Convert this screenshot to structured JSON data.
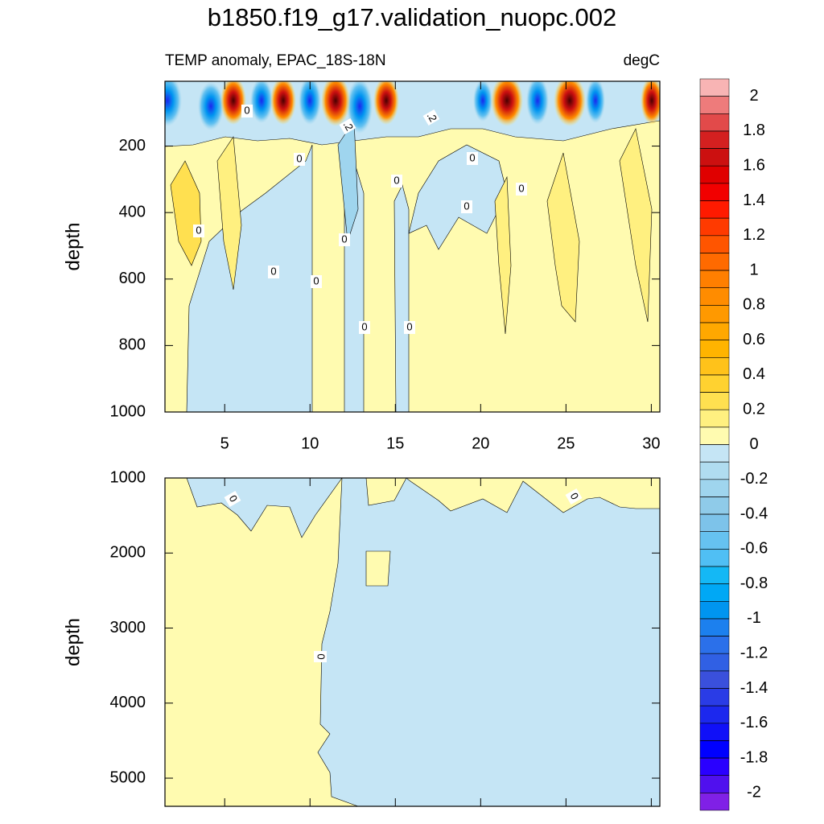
{
  "chart_data": [
    {
      "type": "contour",
      "title": "b1850.f19_g17.validation_nuopc.002",
      "subtitle_left": "TEMP anomaly, EPAC_18S-18N",
      "subtitle_right": "degC",
      "ylabel": "depth",
      "xlim": [
        1.5,
        30.5
      ],
      "xticks": [
        5,
        10,
        15,
        20,
        25,
        30
      ],
      "ylim": [
        5,
        1000
      ],
      "y_reversed": true,
      "yticks": [
        200,
        400,
        600,
        800,
        1000
      ],
      "contour_labels": [
        "0",
        "0",
        "0",
        "0",
        "0",
        "0",
        "0",
        "0",
        "0",
        "0",
        "0",
        "0",
        ".2",
        ".2"
      ],
      "colorbar": {
        "levels": [
          2,
          1.9,
          1.8,
          1.7,
          1.6,
          1.5,
          1.4,
          1.3,
          1.2,
          1.1,
          1,
          0.9,
          0.8,
          0.7,
          0.6,
          0.5,
          0.4,
          0.3,
          0.2,
          0.1,
          0,
          -0.1,
          -0.2,
          -0.3,
          -0.4,
          -0.5,
          -0.6,
          -0.7,
          -0.8,
          -0.9,
          -1,
          -1.1,
          -1.2,
          -1.3,
          -1.4,
          -1.5,
          -1.6,
          -1.7,
          -1.8,
          -1.9,
          -2
        ],
        "colors": [
          "#f8b4b4",
          "#ee7b7b",
          "#e24a4a",
          "#d42020",
          "#cc1010",
          "#e00000",
          "#f20000",
          "#ff1a00",
          "#ff3a00",
          "#ff5500",
          "#ff6a00",
          "#ff7f00",
          "#ff8c00",
          "#ff9900",
          "#ffa800",
          "#ffb400",
          "#ffc21a",
          "#ffd230",
          "#ffe050",
          "#fff080",
          "#fffbb0",
          "#c5e5f5",
          "#b0dcf0",
          "#9fd5ee",
          "#8fcbe9",
          "#7dc3ea",
          "#66c2f0",
          "#50bff4",
          "#14b8f5",
          "#00a8f5",
          "#0095f0",
          "#1c80ee",
          "#2b70ea",
          "#3060e4",
          "#3a50dc",
          "#2a3ce6",
          "#1c28ee",
          "#1010f8",
          "#0000ff",
          "#2a00ff",
          "#5010ee",
          "#8020e6"
        ],
        "ticks": [
          2,
          1.8,
          1.6,
          1.4,
          1.2,
          1,
          0.8,
          0.6,
          0.4,
          0.2,
          0,
          -0.2,
          -0.4,
          -0.6,
          -0.8,
          -1,
          -1.2,
          -1.4,
          -1.6,
          -1.8,
          -2
        ]
      }
    },
    {
      "type": "contour",
      "ylabel": "depth",
      "xlim": [
        1.5,
        30.5
      ],
      "ylim": [
        1000,
        5375
      ],
      "y_reversed": true,
      "yticks": [
        1000,
        2000,
        3000,
        4000,
        5000
      ],
      "contour_labels": [
        "0",
        "0",
        "0"
      ]
    }
  ]
}
